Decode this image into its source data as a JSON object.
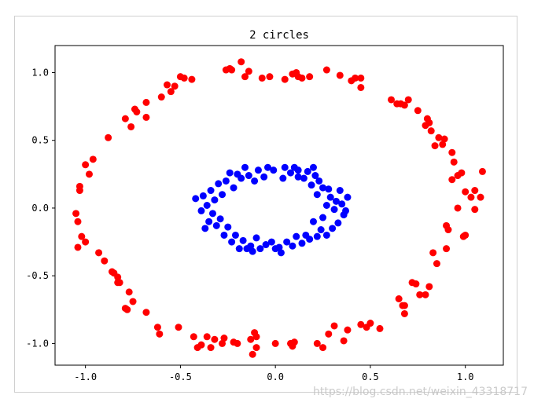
{
  "chart_data": {
    "type": "scatter",
    "title": "2 circles",
    "xlabel": "",
    "ylabel": "",
    "xlim": [
      -1.16,
      1.2
    ],
    "ylim": [
      -1.16,
      1.2
    ],
    "x_ticks": [
      -1.0,
      -0.5,
      0.0,
      0.5,
      1.0
    ],
    "x_tick_labels": [
      "-1.0",
      "-0.5",
      "0.0",
      "0.5",
      "1.0"
    ],
    "y_ticks": [
      -1.0,
      -0.5,
      0.0,
      0.5,
      1.0
    ],
    "y_tick_labels": [
      "-1.0",
      "-0.5",
      "0.0",
      "0.5",
      "1.0"
    ],
    "grid": false,
    "series": [
      {
        "color": "#ff0000",
        "points": [
          [
            1.09,
            0.27
          ],
          [
            1.08,
            0.08
          ],
          [
            1.05,
            0.13
          ],
          [
            1.05,
            -0.01
          ],
          [
            1.03,
            0.08
          ],
          [
            1.0,
            0.12
          ],
          [
            1.0,
            -0.2
          ],
          [
            0.99,
            -0.21
          ],
          [
            0.98,
            0.26
          ],
          [
            0.96,
            0.0
          ],
          [
            0.96,
            0.24
          ],
          [
            0.94,
            0.34
          ],
          [
            0.93,
            0.41
          ],
          [
            0.93,
            0.21
          ],
          [
            0.91,
            -0.16
          ],
          [
            0.9,
            -0.13
          ],
          [
            0.9,
            -0.3
          ],
          [
            0.89,
            0.51
          ],
          [
            0.88,
            0.47
          ],
          [
            0.86,
            0.52
          ],
          [
            0.85,
            -0.41
          ],
          [
            0.84,
            0.46
          ],
          [
            0.83,
            -0.33
          ],
          [
            0.82,
            0.57
          ],
          [
            0.81,
            0.63
          ],
          [
            0.81,
            -0.58
          ],
          [
            0.8,
            0.66
          ],
          [
            0.79,
            -0.64
          ],
          [
            0.79,
            0.61
          ],
          [
            0.76,
            -0.64
          ],
          [
            0.75,
            0.72
          ],
          [
            0.74,
            -0.56
          ],
          [
            0.72,
            -0.55
          ],
          [
            0.7,
            0.8
          ],
          [
            0.68,
            -0.72
          ],
          [
            0.68,
            -0.78
          ],
          [
            0.68,
            0.76
          ],
          [
            0.67,
            -0.72
          ],
          [
            0.66,
            0.77
          ],
          [
            0.65,
            -0.67
          ],
          [
            0.64,
            0.77
          ],
          [
            0.61,
            0.8
          ],
          [
            0.55,
            -0.89
          ],
          [
            0.5,
            -0.85
          ],
          [
            0.48,
            -0.88
          ],
          [
            0.45,
            -0.86
          ],
          [
            0.45,
            0.96
          ],
          [
            0.45,
            0.89
          ],
          [
            0.42,
            0.96
          ],
          [
            0.4,
            0.94
          ],
          [
            0.38,
            -0.9
          ],
          [
            0.36,
            -0.98
          ],
          [
            0.34,
            0.98
          ],
          [
            0.31,
            -0.87
          ],
          [
            0.28,
            -0.93
          ],
          [
            0.27,
            1.02
          ],
          [
            0.25,
            -1.03
          ],
          [
            0.22,
            -1.0
          ],
          [
            0.18,
            0.97
          ],
          [
            0.14,
            0.96
          ],
          [
            0.12,
            0.97
          ],
          [
            0.11,
            1.0
          ],
          [
            0.09,
            0.99
          ],
          [
            0.1,
            -0.99
          ],
          [
            0.09,
            -1.02
          ],
          [
            0.08,
            -1.0
          ],
          [
            0.05,
            0.95
          ],
          [
            0.0,
            -1.0
          ],
          [
            -0.03,
            0.97
          ],
          [
            -0.07,
            0.96
          ],
          [
            -0.1,
            -1.03
          ],
          [
            -0.1,
            -0.95
          ],
          [
            -0.11,
            -0.92
          ],
          [
            -0.12,
            -1.08
          ],
          [
            -0.13,
            -0.97
          ],
          [
            -0.14,
            1.01
          ],
          [
            -0.16,
            0.97
          ],
          [
            -0.18,
            1.08
          ],
          [
            -0.2,
            -1.0
          ],
          [
            -0.22,
            -0.99
          ],
          [
            -0.23,
            1.02
          ],
          [
            -0.24,
            1.03
          ],
          [
            -0.26,
            1.02
          ],
          [
            -0.27,
            -0.96
          ],
          [
            -0.28,
            -1.0
          ],
          [
            -0.32,
            -0.97
          ],
          [
            -0.34,
            -1.03
          ],
          [
            -0.36,
            -0.95
          ],
          [
            -0.39,
            -1.01
          ],
          [
            -0.41,
            -1.03
          ],
          [
            -0.43,
            -0.95
          ],
          [
            -0.44,
            0.95
          ],
          [
            -0.48,
            0.96
          ],
          [
            -0.5,
            0.97
          ],
          [
            -0.51,
            -0.88
          ],
          [
            -0.53,
            0.9
          ],
          [
            -0.55,
            0.86
          ],
          [
            -0.57,
            0.91
          ],
          [
            -0.61,
            -0.93
          ],
          [
            -0.6,
            0.82
          ],
          [
            -0.62,
            -0.88
          ],
          [
            -0.68,
            0.78
          ],
          [
            -0.68,
            -0.77
          ],
          [
            -0.68,
            0.67
          ],
          [
            -0.73,
            0.71
          ],
          [
            -0.74,
            0.73
          ],
          [
            -0.75,
            -0.69
          ],
          [
            -0.76,
            0.6
          ],
          [
            -0.77,
            -0.62
          ],
          [
            -0.78,
            -0.75
          ],
          [
            -0.79,
            -0.74
          ],
          [
            -0.79,
            0.66
          ],
          [
            -0.82,
            -0.55
          ],
          [
            -0.83,
            -0.51
          ],
          [
            -0.83,
            -0.55
          ],
          [
            -0.85,
            -0.48
          ],
          [
            -0.86,
            -0.47
          ],
          [
            -0.88,
            0.52
          ],
          [
            -0.9,
            -0.39
          ],
          [
            -0.93,
            -0.33
          ],
          [
            -0.96,
            0.36
          ],
          [
            -0.98,
            0.25
          ],
          [
            -1.0,
            0.32
          ],
          [
            -1.0,
            -0.25
          ],
          [
            -1.02,
            -0.21
          ],
          [
            -1.03,
            0.16
          ],
          [
            -1.03,
            0.13
          ],
          [
            -1.04,
            -0.1
          ],
          [
            -1.04,
            -0.29
          ],
          [
            -1.05,
            -0.04
          ]
        ]
      },
      {
        "color": "#0000ff",
        "points": [
          [
            0.36,
            -0.05
          ],
          [
            0.35,
            0.03
          ],
          [
            0.34,
            0.13
          ],
          [
            0.33,
            -0.11
          ],
          [
            0.32,
            0.05
          ],
          [
            0.31,
            -0.01
          ],
          [
            0.3,
            -0.15
          ],
          [
            0.29,
            0.08
          ],
          [
            0.28,
            0.14
          ],
          [
            0.27,
            -0.2
          ],
          [
            0.27,
            0.02
          ],
          [
            0.25,
            0.15
          ],
          [
            0.25,
            -0.07
          ],
          [
            0.24,
            -0.16
          ],
          [
            0.23,
            0.2
          ],
          [
            0.22,
            -0.21
          ],
          [
            0.22,
            0.1
          ],
          [
            0.21,
            0.24
          ],
          [
            0.2,
            -0.1
          ],
          [
            0.19,
            0.17
          ],
          [
            0.18,
            -0.23
          ],
          [
            0.17,
            0.27
          ],
          [
            0.16,
            -0.2
          ],
          [
            0.15,
            0.22
          ],
          [
            0.14,
            -0.26
          ],
          [
            0.12,
            0.23
          ],
          [
            0.11,
            -0.21
          ],
          [
            0.1,
            0.3
          ],
          [
            0.09,
            -0.28
          ],
          [
            0.08,
            0.26
          ],
          [
            0.06,
            -0.25
          ],
          [
            0.05,
            0.3
          ],
          [
            0.04,
            0.22
          ],
          [
            0.02,
            -0.29
          ],
          [
            0.0,
            -0.3
          ],
          [
            -0.01,
            0.28
          ],
          [
            -0.02,
            -0.25
          ],
          [
            -0.04,
            0.3
          ],
          [
            -0.05,
            -0.27
          ],
          [
            -0.06,
            0.23
          ],
          [
            -0.08,
            -0.3
          ],
          [
            -0.09,
            0.28
          ],
          [
            -0.1,
            -0.22
          ],
          [
            -0.11,
            0.2
          ],
          [
            -0.13,
            -0.28
          ],
          [
            -0.14,
            0.24
          ],
          [
            -0.15,
            -0.3
          ],
          [
            -0.16,
            0.3
          ],
          [
            -0.17,
            -0.24
          ],
          [
            -0.18,
            0.22
          ],
          [
            -0.19,
            -0.3
          ],
          [
            -0.2,
            0.25
          ],
          [
            -0.21,
            -0.2
          ],
          [
            -0.22,
            0.15
          ],
          [
            -0.23,
            -0.25
          ],
          [
            -0.24,
            0.26
          ],
          [
            -0.25,
            -0.14
          ],
          [
            -0.26,
            0.2
          ],
          [
            -0.27,
            -0.2
          ],
          [
            -0.28,
            0.1
          ],
          [
            -0.29,
            -0.08
          ],
          [
            -0.3,
            0.18
          ],
          [
            -0.31,
            -0.13
          ],
          [
            -0.32,
            0.06
          ],
          [
            -0.33,
            -0.04
          ],
          [
            -0.34,
            0.13
          ],
          [
            -0.35,
            -0.1
          ],
          [
            -0.36,
            0.02
          ],
          [
            -0.37,
            -0.15
          ],
          [
            -0.38,
            0.09
          ],
          [
            -0.42,
            0.07
          ],
          [
            -0.39,
            -0.02
          ],
          [
            0.38,
            0.08
          ],
          [
            0.37,
            -0.02
          ],
          [
            0.12,
            0.28
          ],
          [
            -0.12,
            -0.32
          ],
          [
            0.03,
            -0.33
          ],
          [
            0.2,
            0.3
          ]
        ]
      }
    ]
  },
  "watermark": "https://blog.csdn.net/weixin_43318717"
}
